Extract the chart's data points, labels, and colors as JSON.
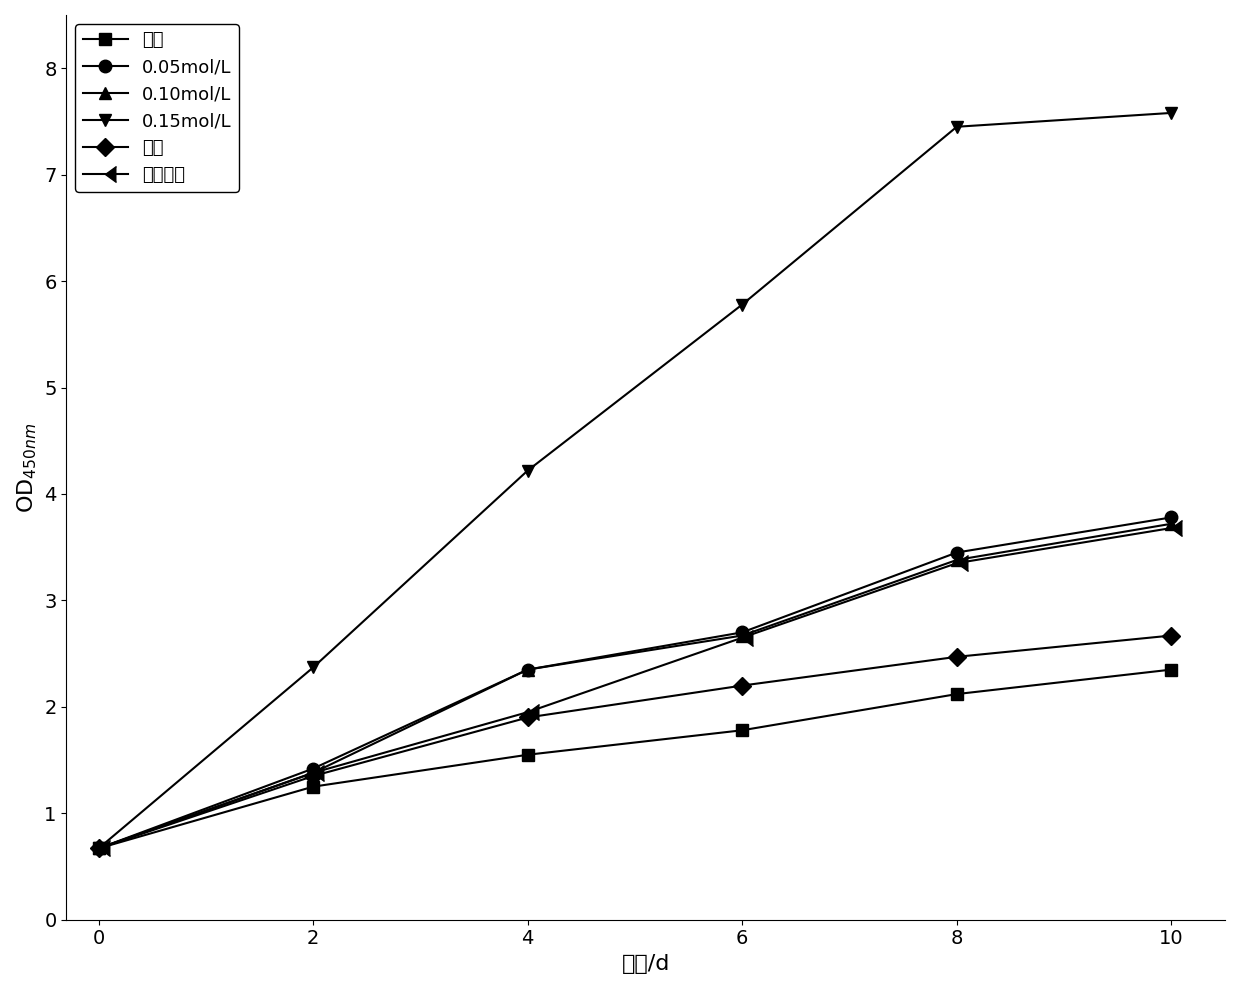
{
  "x": [
    0,
    2,
    4,
    6,
    8,
    10
  ],
  "series": [
    {
      "label": "自养",
      "marker": "s",
      "values": [
        0.67,
        1.25,
        1.55,
        1.78,
        2.12,
        2.35
      ]
    },
    {
      "label": "0.05mol/L",
      "marker": "o",
      "values": [
        0.67,
        1.42,
        2.35,
        2.7,
        3.45,
        3.78
      ]
    },
    {
      "label": "0.10mol/L",
      "marker": "^",
      "values": [
        0.67,
        1.38,
        2.35,
        2.67,
        3.38,
        3.72
      ]
    },
    {
      "label": "0.15mol/L",
      "marker": "v",
      "values": [
        0.67,
        2.37,
        4.22,
        5.78,
        7.45,
        7.58
      ]
    },
    {
      "label": "尿素",
      "marker": "D",
      "values": [
        0.67,
        1.35,
        1.9,
        2.2,
        2.47,
        2.67
      ]
    },
    {
      "label": "胰蛋白胨",
      "marker": 4,
      "values": [
        0.67,
        1.38,
        1.95,
        2.65,
        3.35,
        3.68
      ]
    }
  ],
  "xlabel": "时间/d",
  "ylabel": "OD$_{450nm}$",
  "xlim": [
    -0.3,
    10.5
  ],
  "ylim": [
    0,
    8.5
  ],
  "yticks": [
    0,
    1,
    2,
    3,
    4,
    5,
    6,
    7,
    8
  ],
  "xticks": [
    0,
    2,
    4,
    6,
    8,
    10
  ],
  "line_color": "black",
  "marker_size": 9,
  "line_width": 1.5,
  "title_fontsize": 14,
  "label_fontsize": 16,
  "tick_fontsize": 14,
  "legend_fontsize": 13,
  "figsize": [
    12.4,
    9.89
  ],
  "dpi": 100
}
